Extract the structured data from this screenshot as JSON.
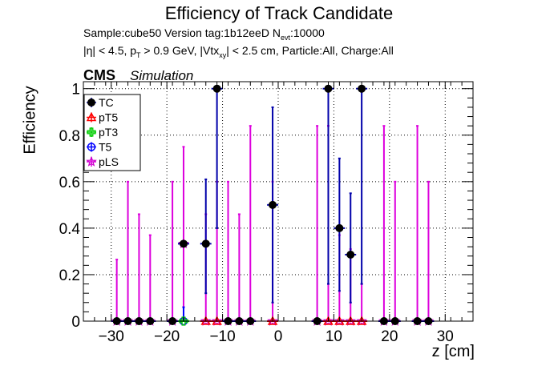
{
  "header": {
    "title": "Efficiency of Track Candidate",
    "subtitle_1": "Sample:cube50   Version tag:1b12eeD  N",
    "subtitle_1_sub": "evt",
    "subtitle_1_tail": ":10000",
    "subtitle_2_a": "|η| < 4.5, p",
    "subtitle_2_sub_a": "T",
    "subtitle_2_b": " > 0.9 GeV, |Vtx",
    "subtitle_2_sub_b": "xy",
    "subtitle_2_c": "| < 2.5 cm, Particle:All, Charge:All",
    "cms_label": "CMS",
    "simulation_label": "Simulation"
  },
  "chart_data": {
    "type": "scatter",
    "xlabel": "z [cm]",
    "ylabel": "Efficiency",
    "xlim": [
      -35,
      35
    ],
    "ylim": [
      0,
      1.03
    ],
    "x_ticks": [
      -30,
      -20,
      -10,
      0,
      10,
      20,
      30
    ],
    "x_tick_labels": [
      "−30",
      "−20",
      "−10",
      "0",
      "10",
      "20",
      "30"
    ],
    "y_ticks": [
      0,
      0.2,
      0.4,
      0.6,
      0.8,
      1
    ],
    "y_tick_labels": [
      "0",
      "0.2",
      "0.4",
      "0.6",
      "0.8",
      "1"
    ],
    "grid": true,
    "legend_position": "top-left",
    "bin_half_width": 1,
    "series": [
      {
        "name": "TC",
        "color": "#000000",
        "bar_color": "#0000aa",
        "marker": "filled-circle",
        "points": [
          {
            "x": -29,
            "y": 0,
            "lo": 0,
            "hi": 0
          },
          {
            "x": -27,
            "y": 0,
            "lo": 0,
            "hi": 0
          },
          {
            "x": -25,
            "y": 0,
            "lo": 0,
            "hi": 0
          },
          {
            "x": -23,
            "y": 0,
            "lo": 0,
            "hi": 0
          },
          {
            "x": -19,
            "y": 0,
            "lo": 0,
            "hi": 0
          },
          {
            "x": -17,
            "y": 0.333,
            "lo": 0.333,
            "hi": 0.333
          },
          {
            "x": -13,
            "y": 0.333,
            "lo": 0.12,
            "hi": 0.61
          },
          {
            "x": -11,
            "y": 1,
            "lo": 0.4,
            "hi": 1
          },
          {
            "x": -9,
            "y": 0,
            "lo": 0,
            "hi": 0
          },
          {
            "x": -7,
            "y": 0,
            "lo": 0,
            "hi": 0
          },
          {
            "x": -5,
            "y": 0,
            "lo": 0,
            "hi": 0
          },
          {
            "x": -1,
            "y": 0.5,
            "lo": 0.08,
            "hi": 0.92
          },
          {
            "x": 7,
            "y": 0,
            "lo": 0,
            "hi": 0
          },
          {
            "x": 9,
            "y": 1,
            "lo": 0.16,
            "hi": 1
          },
          {
            "x": 11,
            "y": 0.4,
            "lo": 0.13,
            "hi": 0.7
          },
          {
            "x": 13,
            "y": 0.286,
            "lo": 0.08,
            "hi": 0.55
          },
          {
            "x": 15,
            "y": 1,
            "lo": 0.16,
            "hi": 1
          },
          {
            "x": 19,
            "y": 0,
            "lo": 0,
            "hi": 0
          },
          {
            "x": 21,
            "y": 0,
            "lo": 0,
            "hi": 0
          },
          {
            "x": 25,
            "y": 0,
            "lo": 0,
            "hi": 0
          },
          {
            "x": 27,
            "y": 0,
            "lo": 0,
            "hi": 0
          }
        ]
      },
      {
        "name": "pT5",
        "color": "#ff0000",
        "bar_color": "#ff0000",
        "marker": "open-triangle",
        "points": [
          {
            "x": -11,
            "y": 0,
            "lo": 0,
            "hi": 0
          },
          {
            "x": -13,
            "y": 0,
            "lo": 0,
            "hi": 0
          },
          {
            "x": -1,
            "y": 0,
            "lo": 0,
            "hi": 0
          },
          {
            "x": 9,
            "y": 0,
            "lo": 0,
            "hi": 0
          },
          {
            "x": 11,
            "y": 0,
            "lo": 0,
            "hi": 0
          },
          {
            "x": 13,
            "y": 0,
            "lo": 0,
            "hi": 0
          },
          {
            "x": 15,
            "y": 0,
            "lo": 0,
            "hi": 0
          }
        ]
      },
      {
        "name": "pT3",
        "color": "#00cc00",
        "bar_color": "#00cc00",
        "marker": "open-cross",
        "points": [
          {
            "x": -17,
            "y": 0,
            "lo": 0,
            "hi": 0
          }
        ]
      },
      {
        "name": "T5",
        "color": "#0000ff",
        "bar_color": "#0000ff",
        "marker": "open-circle",
        "points": [
          {
            "x": -17,
            "y": 0,
            "lo": 0,
            "hi": 0.06
          }
        ]
      },
      {
        "name": "pLS",
        "color": "#cc00cc",
        "bar_color": "#dd00dd",
        "marker": "open-star",
        "points": [
          {
            "x": -29,
            "y": 0,
            "lo": 0,
            "hi": 0.265
          },
          {
            "x": -27,
            "y": 0,
            "lo": 0,
            "hi": 0.6
          },
          {
            "x": -25,
            "y": 0,
            "lo": 0,
            "hi": 0.46
          },
          {
            "x": -23,
            "y": 0,
            "lo": 0,
            "hi": 0.37
          },
          {
            "x": -19,
            "y": 0,
            "lo": 0,
            "hi": 0.6
          },
          {
            "x": -17,
            "y": 0.333,
            "lo": 0.06,
            "hi": 0.75
          },
          {
            "x": -13,
            "y": 0,
            "lo": 0,
            "hi": 0.46
          },
          {
            "x": -11,
            "y": 0,
            "lo": 0,
            "hi": 0.6
          },
          {
            "x": -9,
            "y": 0,
            "lo": 0,
            "hi": 0.6
          },
          {
            "x": -7,
            "y": 0,
            "lo": 0,
            "hi": 0.46
          },
          {
            "x": -5,
            "y": 0,
            "lo": 0,
            "hi": 0.84
          },
          {
            "x": -1,
            "y": 0,
            "lo": 0,
            "hi": 0.6
          },
          {
            "x": 7,
            "y": 0,
            "lo": 0,
            "hi": 0.84
          },
          {
            "x": 9,
            "y": 0,
            "lo": 0,
            "hi": 0.84
          },
          {
            "x": 11,
            "y": 0,
            "lo": 0,
            "hi": 0.37
          },
          {
            "x": 13,
            "y": 0,
            "lo": 0,
            "hi": 0.31
          },
          {
            "x": 15,
            "y": 0,
            "lo": 0,
            "hi": 0.16
          },
          {
            "x": 19,
            "y": 0,
            "lo": 0,
            "hi": 0.84
          },
          {
            "x": 21,
            "y": 0,
            "lo": 0,
            "hi": 0.6
          },
          {
            "x": 25,
            "y": 0,
            "lo": 0,
            "hi": 0.84
          },
          {
            "x": 27,
            "y": 0,
            "lo": 0,
            "hi": 0.6
          }
        ]
      }
    ]
  }
}
